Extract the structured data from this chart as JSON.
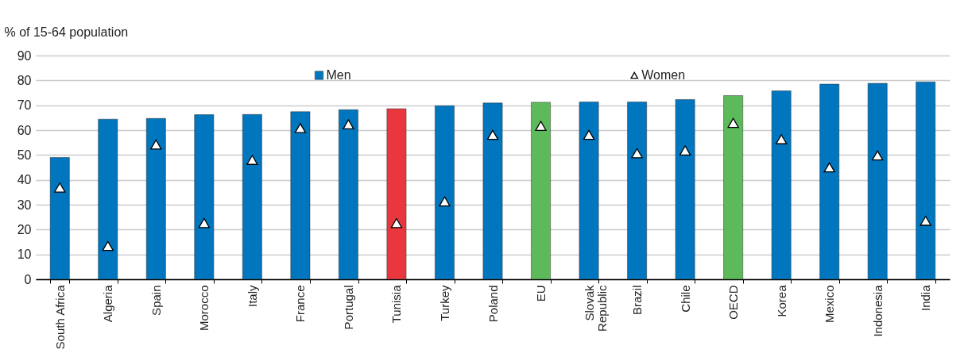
{
  "chart_data": {
    "type": "bar",
    "ylabel": "% of 15-64 population",
    "categories": [
      "South Africa",
      "Algeria",
      "Spain",
      "Morocco",
      "Italy",
      "France",
      "Portugal",
      "Tunisia",
      "Turkey",
      "Poland",
      "EU",
      "Slovak Republic",
      "Brazil",
      "Chile",
      "OECD",
      "Korea",
      "Mexico",
      "Indonesia",
      "India"
    ],
    "series": [
      {
        "name": "Men",
        "type": "bar",
        "color": "#0076be",
        "colors": [
          "#0076be",
          "#0076be",
          "#0076be",
          "#0076be",
          "#0076be",
          "#0076be",
          "#0076be",
          "#e8383d",
          "#0076be",
          "#0076be",
          "#5cba5a",
          "#0076be",
          "#0076be",
          "#0076be",
          "#5cba5a",
          "#0076be",
          "#0076be",
          "#0076be",
          "#0076be"
        ],
        "values": [
          49,
          64.4,
          64.7,
          66.2,
          66.3,
          67.4,
          68.2,
          68.6,
          69.8,
          70.9,
          71.2,
          71.3,
          71.3,
          72.3,
          73.9,
          75.8,
          78.5,
          78.8,
          79.4
        ]
      },
      {
        "name": "Women",
        "type": "scatter",
        "marker": "triangle",
        "color": "#ffffff",
        "values": [
          36.9,
          13.4,
          54.2,
          22.6,
          48,
          60.8,
          62.3,
          22.6,
          31.3,
          58.1,
          61.7,
          58.1,
          50.7,
          51.8,
          62.9,
          56.3,
          45,
          49.8,
          23.5
        ]
      }
    ],
    "ylim": [
      0,
      90
    ],
    "yticks": [
      0,
      10,
      20,
      30,
      40,
      50,
      60,
      70,
      80,
      90
    ],
    "grid": "y",
    "legend": "top"
  }
}
